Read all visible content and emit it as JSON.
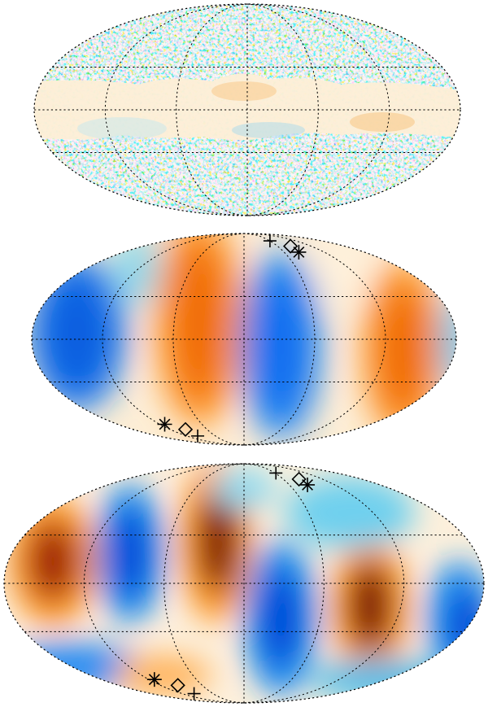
{
  "figure": {
    "panels": [
      {
        "id": "cmb-map",
        "kind": "noise-map",
        "colors": [
          "#0050c8",
          "#1ab4e6",
          "#fdeed6",
          "#f59a2a",
          "#c94d00"
        ]
      },
      {
        "id": "dipole-l2-map",
        "kind": "multipole",
        "colors": [
          "#0b6cf0",
          "#36c6ef",
          "#fdeed6",
          "#ffb35c",
          "#f06a00"
        ],
        "markers": [
          {
            "symbol": "plus-marker",
            "lon": 60,
            "lat": 78
          },
          {
            "symbol": "diamond-marker",
            "lon": 83,
            "lat": 72
          },
          {
            "symbol": "asterisk-marker",
            "lon": 82,
            "lat": 66
          },
          {
            "symbol": "asterisk-marker",
            "lon": -113,
            "lat": -64
          },
          {
            "symbol": "diamond-marker",
            "lon": -95,
            "lat": -69
          },
          {
            "symbol": "plus-marker",
            "lon": -97,
            "lat": -76
          }
        ]
      },
      {
        "id": "l3-map",
        "kind": "multipole",
        "colors": [
          "#0046d8",
          "#38c4ee",
          "#fdf0dc",
          "#ffac4a",
          "#7a0800"
        ],
        "markers": [
          {
            "symbol": "plus-marker",
            "lon": 62,
            "lat": 77
          },
          {
            "symbol": "diamond-marker",
            "lon": 84,
            "lat": 71
          },
          {
            "symbol": "asterisk-marker",
            "lon": 84,
            "lat": 66
          },
          {
            "symbol": "asterisk-marker",
            "lon": -113,
            "lat": -64
          },
          {
            "symbol": "diamond-marker",
            "lon": -95,
            "lat": -69
          },
          {
            "symbol": "plus-marker",
            "lon": -97,
            "lat": -77
          }
        ]
      }
    ]
  }
}
